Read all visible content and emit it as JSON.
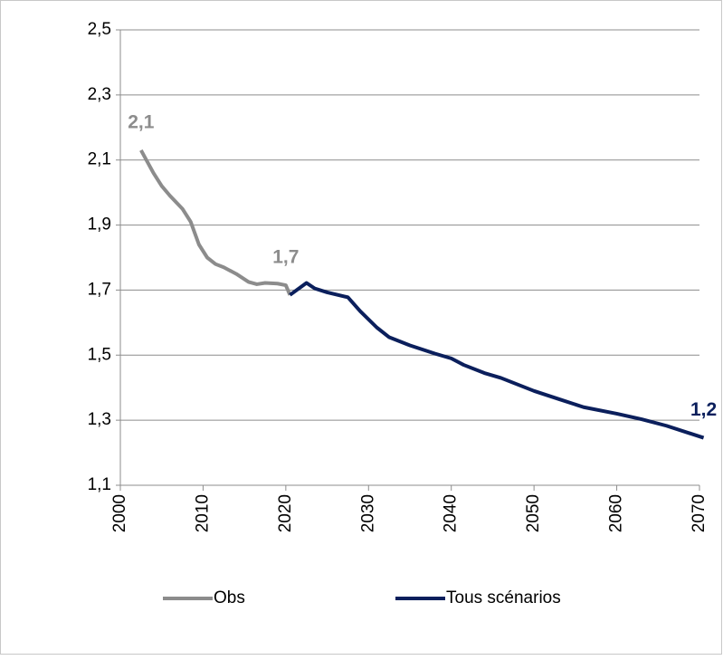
{
  "chart_data": {
    "type": "line",
    "xlim": [
      2000,
      2070
    ],
    "xticks": [
      2000,
      2010,
      2020,
      2030,
      2040,
      2050,
      2060,
      2070
    ],
    "ylim": [
      1.1,
      2.5
    ],
    "yticks": [
      {
        "value": 1.1,
        "label": "1,1"
      },
      {
        "value": 1.3,
        "label": "1,3"
      },
      {
        "value": 1.5,
        "label": "1,5"
      },
      {
        "value": 1.7,
        "label": "1,7"
      },
      {
        "value": 1.9,
        "label": "1,9"
      },
      {
        "value": 2.1,
        "label": "2,1"
      },
      {
        "value": 2.3,
        "label": "2,3"
      },
      {
        "value": 2.5,
        "label": "2,5"
      }
    ],
    "grid": true,
    "legend": "bottom",
    "series": [
      {
        "name": "Obs",
        "color": "#8c8c8c",
        "x": [
          2002.5,
          2004,
          2005,
          2006,
          2007.5,
          2008.5,
          2009.5,
          2010.5,
          2011.5,
          2012.5,
          2014,
          2015.5,
          2016.5,
          2017.5,
          2019,
          2020,
          2020.5
        ],
        "values": [
          2.13,
          2.06,
          2.02,
          1.99,
          1.95,
          1.91,
          1.84,
          1.8,
          1.78,
          1.77,
          1.75,
          1.725,
          1.718,
          1.722,
          1.72,
          1.715,
          1.685
        ],
        "value_labels": [
          "2,1",
          null,
          null,
          null,
          null,
          null,
          null,
          null,
          null,
          null,
          null,
          null,
          null,
          null,
          null,
          "1,7",
          null
        ]
      },
      {
        "name": "Tous scénarios",
        "color": "#0b1f5c",
        "x": [
          2020.5,
          2022.5,
          2023.5,
          2025,
          2027.5,
          2029,
          2031,
          2032.5,
          2035,
          2038,
          2040,
          2041.5,
          2044,
          2046,
          2050,
          2053,
          2056,
          2060,
          2063,
          2066,
          2070.5
        ],
        "values": [
          1.685,
          1.722,
          1.705,
          1.693,
          1.678,
          1.635,
          1.585,
          1.555,
          1.53,
          1.505,
          1.49,
          1.47,
          1.445,
          1.43,
          1.39,
          1.365,
          1.34,
          1.32,
          1.303,
          1.283,
          1.246
        ],
        "value_labels": [
          null,
          null,
          null,
          null,
          null,
          null,
          null,
          null,
          null,
          null,
          null,
          null,
          null,
          null,
          null,
          null,
          null,
          null,
          null,
          null,
          "1,2"
        ]
      }
    ]
  }
}
